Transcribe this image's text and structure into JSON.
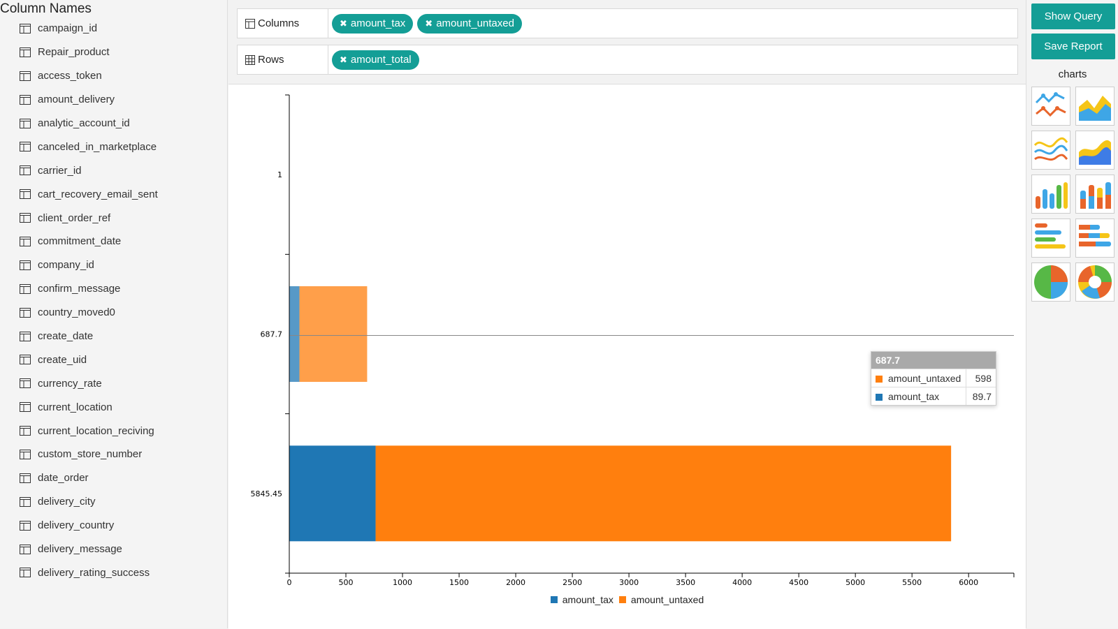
{
  "sidebar": {
    "title": "Column Names",
    "columns": [
      "campaign_id",
      "Repair_product",
      "access_token",
      "amount_delivery",
      "analytic_account_id",
      "canceled_in_marketplace",
      "carrier_id",
      "cart_recovery_email_sent",
      "client_order_ref",
      "commitment_date",
      "company_id",
      "confirm_message",
      "country_moved0",
      "create_date",
      "create_uid",
      "currency_rate",
      "current_location",
      "current_location_reciving",
      "custom_store_number",
      "date_order",
      "delivery_city",
      "delivery_country",
      "delivery_message",
      "delivery_rating_success"
    ]
  },
  "fields": {
    "columns_label": "Columns",
    "columns_chips": [
      "amount_tax",
      "amount_untaxed"
    ],
    "rows_label": "Rows",
    "rows_chips": [
      "amount_total"
    ]
  },
  "actions": {
    "show_query": "Show Query",
    "save_report": "Save Report",
    "charts_title": "charts",
    "chart_types": [
      "line-chart-icon",
      "area-chart-icon",
      "spline-chart-icon",
      "spline-area-chart-icon",
      "column-chart-icon",
      "stacked-column-chart-icon",
      "bar-chart-icon",
      "stacked-bar-chart-icon",
      "pie-chart-icon",
      "donut-chart-icon"
    ]
  },
  "tooltip": {
    "title": "687.7",
    "rows": [
      {
        "name": "amount_untaxed",
        "value": "598",
        "color": "#ff7f0e"
      },
      {
        "name": "amount_tax",
        "value": "89.7",
        "color": "#1f77b4"
      }
    ]
  },
  "colors": {
    "accent": "#149e96",
    "tax": "#1f77b4",
    "untaxed": "#ff7f0e"
  },
  "chart_data": {
    "type": "bar",
    "orientation": "horizontal",
    "stacked": true,
    "categories": [
      "1",
      "687.7",
      "5845.45"
    ],
    "series": [
      {
        "name": "amount_tax",
        "values": [
          0,
          89.7,
          762.45
        ]
      },
      {
        "name": "amount_untaxed",
        "values": [
          0,
          598,
          5083
        ]
      }
    ],
    "x_ticks": [
      0,
      500,
      1000,
      1500,
      2000,
      2500,
      3000,
      3500,
      4000,
      4500,
      5000,
      5500,
      6000
    ],
    "xlim": [
      0,
      6400
    ],
    "highlighted_category": "687.7",
    "legend_position": "bottom"
  }
}
